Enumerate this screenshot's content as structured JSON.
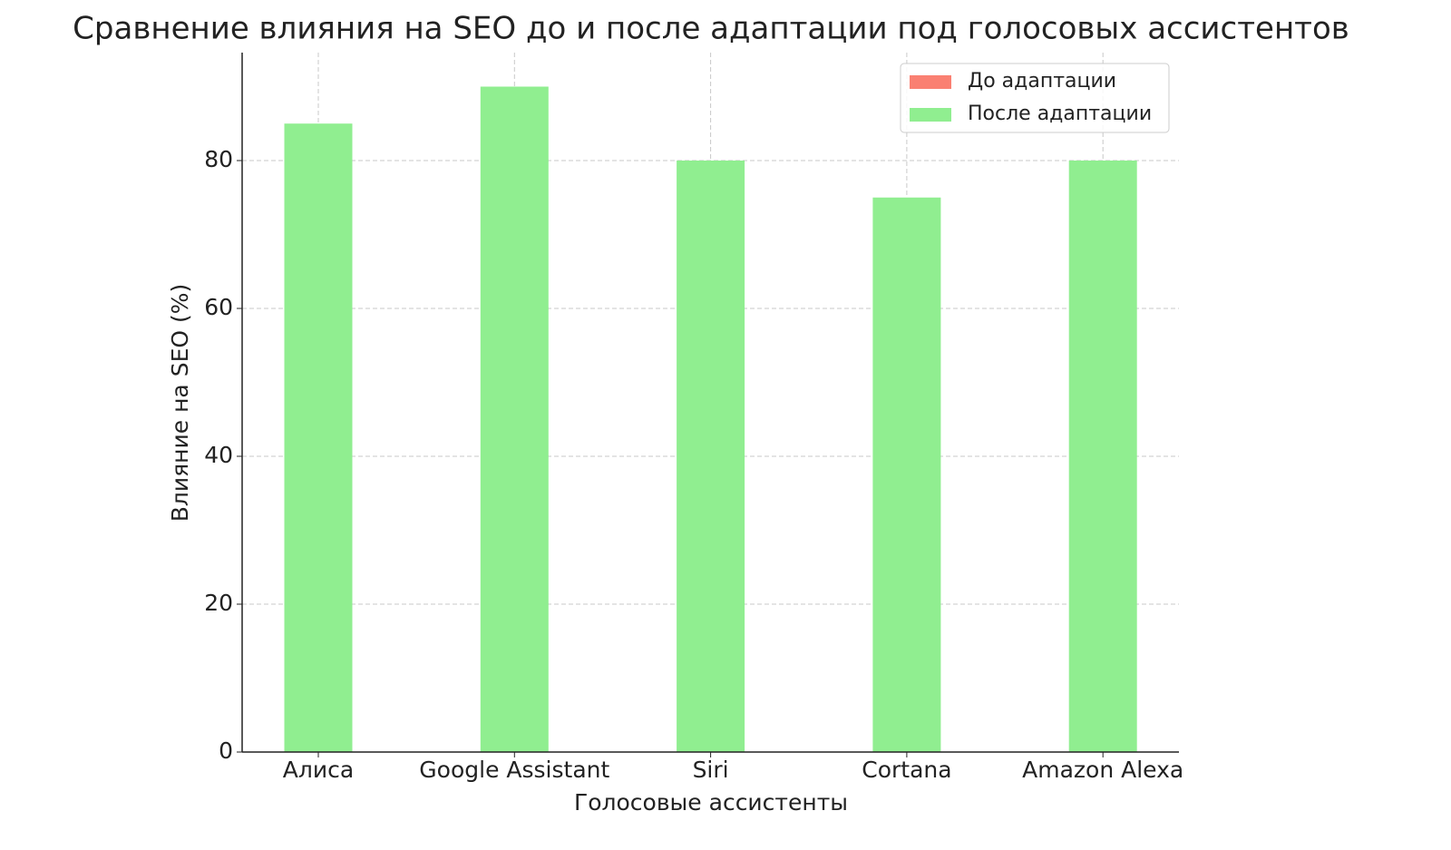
{
  "chart_data": {
    "type": "bar",
    "title": "Сравнение влияния на SEO до и после адаптации под голосовых ассистентов",
    "x_label": "Голосовые ассистенты",
    "y_label": "Влияние на SEO (%)",
    "categories": [
      "Алиса",
      "Google Assistant",
      "Siri",
      "Cortana",
      "Amazon Alexa"
    ],
    "series": [
      {
        "name": "До адаптации",
        "color": "#fa8072",
        "values": [
          null,
          null,
          null,
          null,
          null
        ]
      },
      {
        "name": "После адаптации",
        "color": "#90ee90",
        "values": [
          85,
          90,
          80,
          75,
          80
        ]
      }
    ],
    "ylim": [
      0,
      94.6
    ],
    "yticks": [
      0,
      20,
      40,
      60,
      80
    ],
    "grid": true,
    "legend": "upper right"
  }
}
